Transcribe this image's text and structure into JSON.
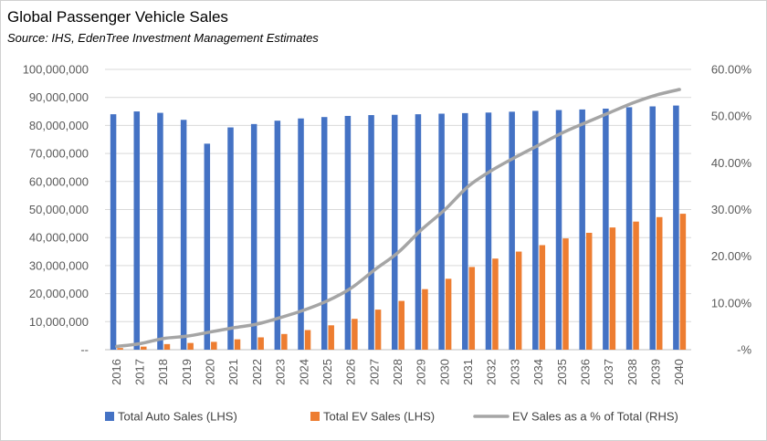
{
  "header": {
    "title": "Global Passenger Vehicle Sales",
    "subtitle": "Source: IHS, EdenTree Investment Management Estimates"
  },
  "chart_data": {
    "type": "bar",
    "categories": [
      "2016",
      "2017",
      "2018",
      "2019",
      "2020",
      "2021",
      "2022",
      "2023",
      "2024",
      "2025",
      "2026",
      "2027",
      "2028",
      "2029",
      "2030",
      "2031",
      "2032",
      "2033",
      "2034",
      "2035",
      "2036",
      "2037",
      "2038",
      "2039",
      "2040"
    ],
    "series": [
      {
        "name": "Total Auto Sales (LHS)",
        "type": "bar",
        "axis": "left",
        "color": "#4472C4",
        "values": [
          84000000,
          85000000,
          84500000,
          82000000,
          73500000,
          79300000,
          80500000,
          81700000,
          82500000,
          83000000,
          83400000,
          83700000,
          83800000,
          84000000,
          84200000,
          84400000,
          84600000,
          84900000,
          85200000,
          85500000,
          85700000,
          86000000,
          86500000,
          86800000,
          87100000
        ]
      },
      {
        "name": "Total EV Sales (LHS)",
        "type": "bar",
        "axis": "left",
        "color": "#ED7D31",
        "values": [
          600000,
          1100000,
          2000000,
          2400000,
          2800000,
          3700000,
          4400000,
          5600000,
          7000000,
          8700000,
          11000000,
          14300000,
          17400000,
          21600000,
          25300000,
          29500000,
          32500000,
          35000000,
          37300000,
          39700000,
          41700000,
          43600000,
          45700000,
          47300000,
          48500000
        ]
      },
      {
        "name": "EV Sales as a % of Total (RHS)",
        "type": "line",
        "axis": "right",
        "color": "#A5A5A5",
        "values": [
          0.7,
          1.3,
          2.4,
          2.9,
          3.8,
          4.7,
          5.5,
          6.9,
          8.5,
          10.5,
          13.2,
          17.1,
          20.8,
          25.7,
          30.0,
          35.0,
          38.4,
          41.2,
          43.8,
          46.4,
          48.6,
          50.7,
          52.8,
          54.5,
          55.7
        ]
      }
    ],
    "y_left": {
      "ylim": [
        0,
        100000000
      ],
      "ticks": [
        "--",
        "10,000,000",
        "20,000,000",
        "30,000,000",
        "40,000,000",
        "50,000,000",
        "60,000,000",
        "70,000,000",
        "80,000,000",
        "90,000,000",
        "100,000,000"
      ]
    },
    "y_right": {
      "ylim": [
        0,
        60
      ],
      "ticks": [
        "-%",
        "10.00%",
        "20.00%",
        "30.00%",
        "40.00%",
        "50.00%",
        "60.00%"
      ]
    },
    "grid": true,
    "legend": "bottom"
  }
}
